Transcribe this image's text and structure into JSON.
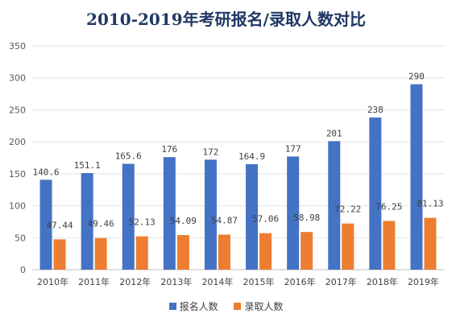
{
  "colors": {
    "series_1": "#4472c4",
    "series_2": "#ed7d31",
    "title": "#1f3864"
  },
  "chart_data": {
    "type": "bar",
    "title": "2010-2019年考研报名/录取人数对比",
    "categories": [
      "2010年",
      "2011年",
      "2012年",
      "2013年",
      "2014年",
      "2015年",
      "2016年",
      "2017年",
      "2018年",
      "2019年"
    ],
    "series": [
      {
        "name": "报名人数",
        "values": [
          140.6,
          151.1,
          165.6,
          176,
          172,
          164.9,
          177,
          201,
          238,
          290
        ]
      },
      {
        "name": "录取人数",
        "values": [
          47.44,
          49.46,
          52.13,
          54.09,
          54.87,
          57.06,
          58.98,
          72.22,
          76.25,
          81.13
        ]
      }
    ],
    "ylim": [
      0,
      350
    ],
    "yticks": [
      0,
      50,
      100,
      150,
      200,
      250,
      300,
      350
    ],
    "grid": true,
    "legend_position": "bottom"
  }
}
